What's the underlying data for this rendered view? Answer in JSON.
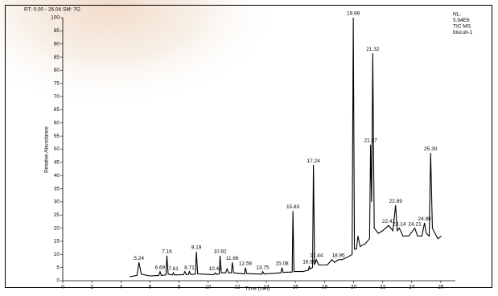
{
  "chart_data": {
    "type": "line",
    "header": "RT: 0.00 - 26.04  SM: 7G",
    "info": [
      "NL:",
      "5.94E6",
      "TIC  MS",
      "biscuit-1"
    ],
    "x_label": "Time (min)",
    "y_label": "Relative Abundance",
    "color": "#000000",
    "peak_label_color": "#000000",
    "xlim": [
      0,
      27
    ],
    "xticks": [
      0,
      2,
      4,
      6,
      8,
      10,
      12,
      14,
      16,
      18,
      20,
      22,
      24,
      26
    ],
    "ylim": [
      0,
      100
    ],
    "yticks": [
      0,
      5,
      10,
      15,
      20,
      25,
      30,
      35,
      40,
      45,
      50,
      55,
      60,
      65,
      70,
      75,
      80,
      85,
      90,
      95,
      100
    ],
    "series": [
      {
        "name": "biscuit-1",
        "color": "#000000",
        "x": [
          4.6,
          5.1,
          5.24,
          5.4,
          6.0,
          6.6,
          6.69,
          6.78,
          7.1,
          7.16,
          7.25,
          7.55,
          7.61,
          7.7,
          8.3,
          8.4,
          8.5,
          8.65,
          8.71,
          8.8,
          9.12,
          9.19,
          9.28,
          10.0,
          10.4,
          10.49,
          10.6,
          10.76,
          10.82,
          10.9,
          11.2,
          11.3,
          11.4,
          11.6,
          11.66,
          11.75,
          12.5,
          12.56,
          12.65,
          13.7,
          13.75,
          13.85,
          14.5,
          15.0,
          15.08,
          15.15,
          15.78,
          15.83,
          15.9,
          16.5,
          16.9,
          16.95,
          17.0,
          17.18,
          17.24,
          17.32,
          17.44,
          17.6,
          18.2,
          18.5,
          18.7,
          18.95,
          19.2,
          19.6,
          19.9,
          19.98,
          20.06,
          20.2,
          20.3,
          20.45,
          20.8,
          21.1,
          21.17,
          21.24,
          21.32,
          21.42,
          21.7,
          22.0,
          22.41,
          22.7,
          22.89,
          23.0,
          23.14,
          23.4,
          23.8,
          24.21,
          24.4,
          24.7,
          24.88,
          25.0,
          25.2,
          25.3,
          25.42,
          25.6,
          25.8,
          26.04
        ],
        "values": [
          1.5,
          2,
          7,
          2.5,
          1.8,
          2,
          3.5,
          2,
          2.2,
          9.5,
          2.5,
          2.2,
          3,
          2.2,
          2.3,
          3.5,
          2.3,
          2.4,
          3.5,
          2.4,
          2.5,
          11,
          2.6,
          2.4,
          2.3,
          3,
          2.4,
          2.6,
          9.5,
          3,
          3,
          4.5,
          3,
          3,
          7,
          3,
          2.6,
          5,
          2.7,
          2.5,
          3.5,
          2.6,
          2.8,
          3,
          5,
          3.2,
          3.3,
          26.5,
          3.5,
          3.5,
          4,
          5.5,
          4.5,
          5,
          44,
          6,
          8,
          6,
          6,
          8,
          7,
          8,
          8,
          9,
          10,
          100,
          12,
          12,
          17,
          13,
          14,
          16,
          51.7,
          30,
          86.5,
          20,
          18,
          19,
          21,
          19,
          28.7,
          19,
          20,
          17,
          17,
          20,
          17,
          17,
          22,
          18,
          17,
          48.6,
          20,
          18,
          16,
          17
        ]
      }
    ],
    "peaks": [
      {
        "x": 5.24,
        "y": 7
      },
      {
        "x": 6.69,
        "y": 3.5
      },
      {
        "x": 7.16,
        "y": 9.5
      },
      {
        "x": 7.61,
        "y": 3
      },
      {
        "x": 8.71,
        "y": 3.5
      },
      {
        "x": 9.19,
        "y": 11
      },
      {
        "x": 10.49,
        "y": 3,
        "color": "#2a8a2a"
      },
      {
        "x": 10.82,
        "y": 9.5
      },
      {
        "x": 11.66,
        "y": 7
      },
      {
        "x": 12.56,
        "y": 5,
        "color": "#2a8a2a"
      },
      {
        "x": 13.75,
        "y": 3.5
      },
      {
        "x": 15.08,
        "y": 5
      },
      {
        "x": 15.83,
        "y": 26.5
      },
      {
        "x": 16.95,
        "y": 5.5
      },
      {
        "x": 17.24,
        "y": 44
      },
      {
        "x": 17.44,
        "y": 8,
        "color": "#2a8a2a"
      },
      {
        "x": 18.95,
        "y": 8
      },
      {
        "x": 19.98,
        "y": 100
      },
      {
        "x": 21.17,
        "y": 51.7,
        "color": "#2a8a2a"
      },
      {
        "x": 21.32,
        "y": 86.5
      },
      {
        "x": 22.41,
        "y": 21
      },
      {
        "x": 22.89,
        "y": 28.7
      },
      {
        "x": 23.14,
        "y": 20,
        "color": "#2a8a2a"
      },
      {
        "x": 24.21,
        "y": 20,
        "color": "#2a8a2a"
      },
      {
        "x": 24.88,
        "y": 22
      },
      {
        "x": 25.3,
        "y": 48.6,
        "label": "25.30"
      }
    ]
  }
}
